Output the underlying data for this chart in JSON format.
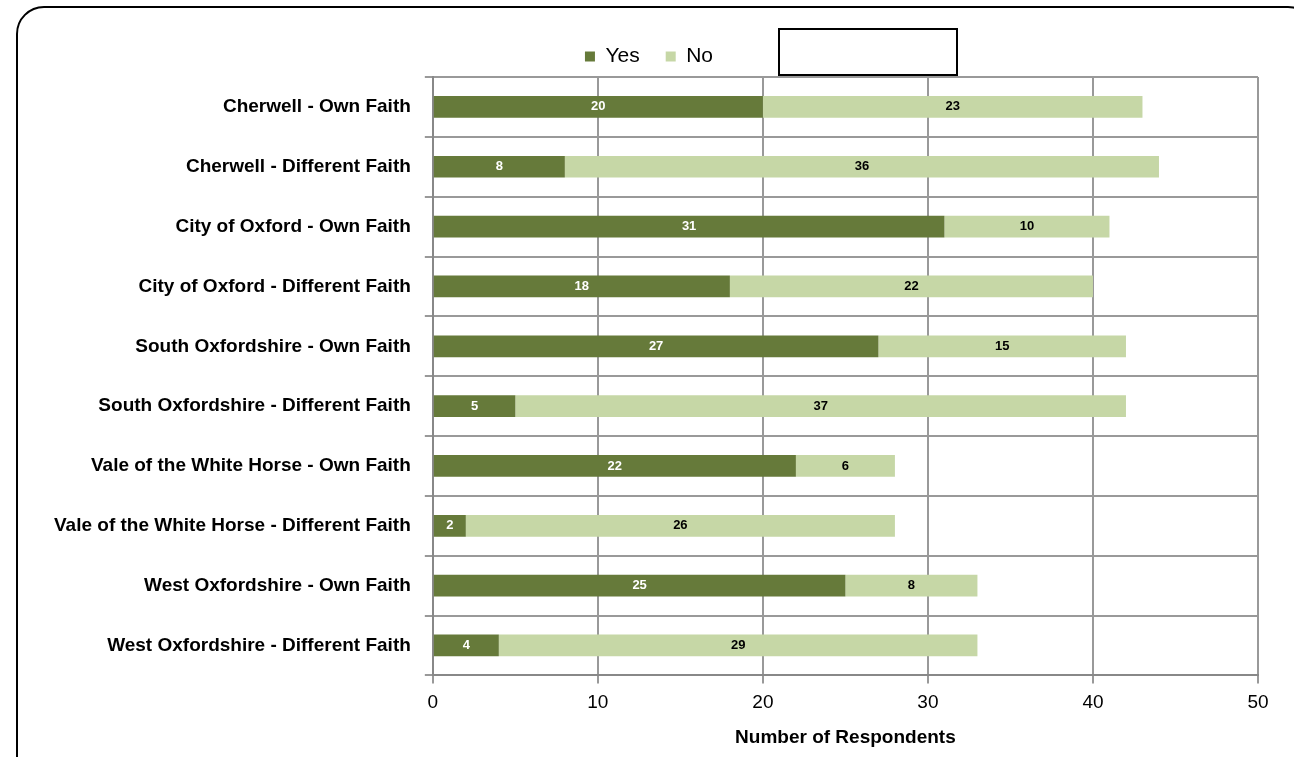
{
  "chart_data": {
    "type": "bar",
    "orientation": "horizontal",
    "stacked": true,
    "xlabel": "Number of Respondents",
    "categories": [
      "Cherwell - Own Faith",
      "Cherwell - Different Faith",
      "City of Oxford - Own Faith",
      "City of Oxford - Different Faith",
      "South Oxfordshire - Own Faith",
      "South Oxfordshire - Different Faith",
      "Vale of the White Horse - Own Faith",
      "Vale of the White Horse - Different Faith",
      "West Oxfordshire - Own Faith",
      "West Oxfordshire - Different Faith"
    ],
    "series": [
      {
        "name": "Yes",
        "color": "#667a3a",
        "values": [
          20,
          8,
          31,
          18,
          27,
          5,
          22,
          2,
          25,
          4
        ]
      },
      {
        "name": "No",
        "color": "#c6d7a6",
        "values": [
          23,
          36,
          10,
          22,
          15,
          37,
          6,
          26,
          8,
          29
        ]
      }
    ],
    "xlim": [
      0,
      50
    ],
    "xticks": [
      0,
      10,
      20,
      30,
      40,
      50
    ],
    "grid": true,
    "legend": "top",
    "data_labels": true
  }
}
